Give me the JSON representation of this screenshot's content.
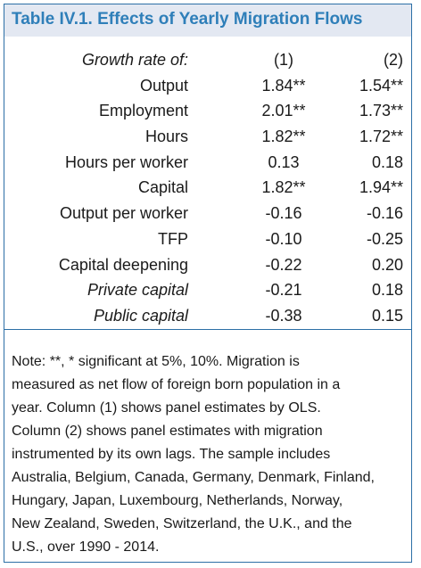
{
  "title": "Table IV.1. Effects of Yearly Migration Flows",
  "header": {
    "label": "Growth rate of:",
    "col1": "(1)",
    "col2": "(2)"
  },
  "rows": [
    {
      "label": "Output",
      "col1": "1.84**",
      "col2": "1.54**",
      "italic": false
    },
    {
      "label": "Employment",
      "col1": "2.01**",
      "col2": "1.73**",
      "italic": false
    },
    {
      "label": "Hours",
      "col1": "1.82**",
      "col2": "1.72**",
      "italic": false
    },
    {
      "label": "Hours per worker",
      "col1": "0.13",
      "col2": "0.18",
      "italic": false
    },
    {
      "label": "Capital",
      "col1": "1.82**",
      "col2": "1.94**",
      "italic": false
    },
    {
      "label": "Output per worker",
      "col1": "-0.16",
      "col2": "-0.16",
      "italic": false
    },
    {
      "label": "TFP",
      "col1": "-0.10",
      "col2": "-0.25",
      "italic": false
    },
    {
      "label": "Capital deepening",
      "col1": "-0.22",
      "col2": "0.20",
      "italic": false
    },
    {
      "label": "Private capital",
      "col1": "-0.21",
      "col2": "0.18",
      "italic": true
    },
    {
      "label": "Public capital",
      "col1": "-0.38",
      "col2": "0.15",
      "italic": true
    }
  ],
  "note_lines": [
    "Note: **, * significant at 5%, 10%. Migration is",
    "measured as net flow of foreign born population in a",
    "year.  Column (1) shows panel estimates by OLS.",
    "Column (2) shows panel estimates with migration",
    "instrumented by its own lags. The sample includes",
    "Australia, Belgium, Canada, Germany, Denmark, Finland,",
    "Hungary, Japan, Luxembourg, Netherlands, Norway,",
    "New Zealand, Sweden, Switzerland, the U.K., and the",
    "U.S., over 1990 - 2014."
  ]
}
